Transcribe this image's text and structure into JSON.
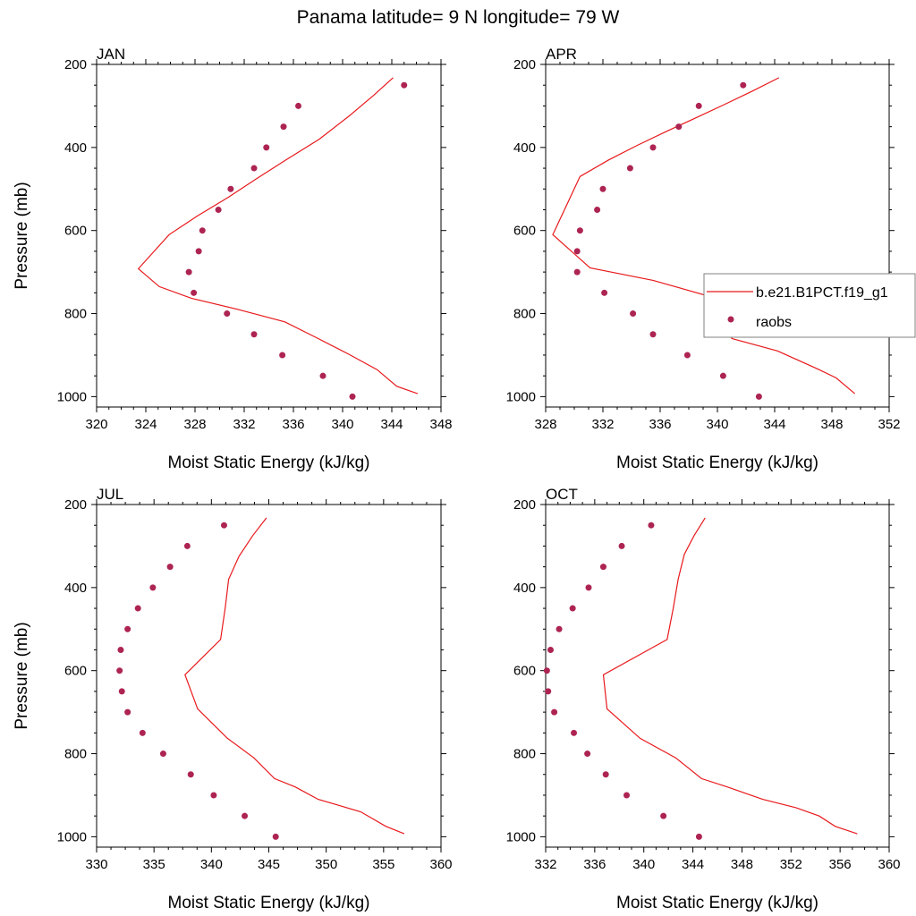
{
  "figure_title": "Panama  latitude= 9 N longitude= 79 W",
  "legend": {
    "model_label": "b.e21.B1PCT.f19_g1",
    "obs_label": "raobs",
    "model_color": "#e8191c",
    "obs_color": "#ad2453"
  },
  "chart_data": [
    {
      "type": "line",
      "panel": "JAN",
      "xlabel": "Moist Static Energy (kJ/kg)",
      "ylabel": "Pressure (mb)",
      "xlim": [
        320,
        348
      ],
      "ylim": [
        200,
        1025
      ],
      "y_inverted": true,
      "xticks": [
        "320",
        "324",
        "328",
        "332",
        "336",
        "340",
        "344",
        "348"
      ],
      "yticks": [
        "200",
        "400",
        "600",
        "800",
        "1000"
      ],
      "series": [
        {
          "name": "b.e21.B1PCT.f19_g1",
          "style": "line",
          "points": [
            [
              344.1,
              232
            ],
            [
              342.5,
              275
            ],
            [
              340.5,
              325
            ],
            [
              338.1,
              380
            ],
            [
              335.4,
              430
            ],
            [
              333.0,
              475
            ],
            [
              330.7,
              520
            ],
            [
              328.2,
              565
            ],
            [
              325.9,
              610
            ],
            [
              323.4,
              692
            ],
            [
              325.1,
              735
            ],
            [
              327.7,
              763
            ],
            [
              331.5,
              790
            ],
            [
              335.3,
              820
            ],
            [
              338.0,
              860
            ],
            [
              340.5,
              898
            ],
            [
              342.8,
              935
            ],
            [
              344.4,
              975
            ],
            [
              346.1,
              993
            ]
          ]
        },
        {
          "name": "raobs",
          "style": "scatter",
          "points": [
            [
              345.0,
              250
            ],
            [
              336.4,
              300
            ],
            [
              335.2,
              350
            ],
            [
              333.8,
              400
            ],
            [
              332.8,
              450
            ],
            [
              330.9,
              500
            ],
            [
              329.9,
              550
            ],
            [
              328.6,
              600
            ],
            [
              328.3,
              650
            ],
            [
              327.5,
              700
            ],
            [
              327.9,
              750
            ],
            [
              330.6,
              800
            ],
            [
              332.8,
              850
            ],
            [
              335.1,
              900
            ],
            [
              338.4,
              950
            ],
            [
              340.8,
              1000
            ]
          ]
        }
      ]
    },
    {
      "type": "line",
      "panel": "APR",
      "xlabel": "Moist Static Energy (kJ/kg)",
      "ylabel": "",
      "xlim": [
        328,
        352
      ],
      "ylim": [
        200,
        1025
      ],
      "y_inverted": true,
      "xticks": [
        "328",
        "332",
        "336",
        "340",
        "344",
        "348",
        "352"
      ],
      "yticks": [
        "200",
        "400",
        "600",
        "800",
        "1000"
      ],
      "series": [
        {
          "name": "b.e21.B1PCT.f19_g1",
          "style": "line",
          "points": [
            [
              344.3,
              232
            ],
            [
              342.4,
              265
            ],
            [
              340.4,
              298
            ],
            [
              338.4,
              330
            ],
            [
              336.4,
              362
            ],
            [
              334.4,
              395
            ],
            [
              332.4,
              430
            ],
            [
              330.4,
              470
            ],
            [
              328.5,
              610
            ],
            [
              331.1,
              690
            ],
            [
              335.5,
              720
            ],
            [
              339.6,
              760
            ],
            [
              340.6,
              800
            ],
            [
              341.0,
              860
            ],
            [
              344.2,
              890
            ],
            [
              347.1,
              935
            ],
            [
              348.3,
              955
            ],
            [
              349.6,
              993
            ]
          ]
        },
        {
          "name": "raobs",
          "style": "scatter",
          "points": [
            [
              341.8,
              250
            ],
            [
              338.7,
              300
            ],
            [
              337.3,
              350
            ],
            [
              335.5,
              400
            ],
            [
              333.9,
              450
            ],
            [
              332.0,
              500
            ],
            [
              331.6,
              550
            ],
            [
              330.4,
              600
            ],
            [
              330.2,
              650
            ],
            [
              330.2,
              700
            ],
            [
              332.1,
              750
            ],
            [
              334.1,
              800
            ],
            [
              335.5,
              850
            ],
            [
              337.9,
              900
            ],
            [
              340.4,
              950
            ],
            [
              342.9,
              1000
            ]
          ]
        }
      ]
    },
    {
      "type": "line",
      "panel": "JUL",
      "xlabel": "Moist Static Energy (kJ/kg)",
      "ylabel": "Pressure (mb)",
      "xlim": [
        330,
        360
      ],
      "ylim": [
        200,
        1025
      ],
      "y_inverted": true,
      "xticks": [
        "330",
        "335",
        "340",
        "345",
        "350",
        "355",
        "360"
      ],
      "yticks": [
        "200",
        "400",
        "600",
        "800",
        "1000"
      ],
      "series": [
        {
          "name": "b.e21.B1PCT.f19_g1",
          "style": "line",
          "points": [
            [
              344.8,
              232
            ],
            [
              343.6,
              275
            ],
            [
              342.4,
              325
            ],
            [
              341.5,
              380
            ],
            [
              341.2,
              450
            ],
            [
              340.8,
              525
            ],
            [
              337.7,
              610
            ],
            [
              338.8,
              692
            ],
            [
              341.4,
              763
            ],
            [
              343.7,
              810
            ],
            [
              345.5,
              860
            ],
            [
              347.3,
              880
            ],
            [
              349.3,
              910
            ],
            [
              353.0,
              940
            ],
            [
              355.2,
              975
            ],
            [
              356.8,
              993
            ]
          ]
        },
        {
          "name": "raobs",
          "style": "scatter",
          "points": [
            [
              341.1,
              250
            ],
            [
              337.9,
              300
            ],
            [
              336.4,
              350
            ],
            [
              334.9,
              400
            ],
            [
              333.6,
              450
            ],
            [
              332.7,
              500
            ],
            [
              332.1,
              550
            ],
            [
              332.0,
              600
            ],
            [
              332.2,
              650
            ],
            [
              332.7,
              700
            ],
            [
              334.0,
              750
            ],
            [
              335.8,
              800
            ],
            [
              338.2,
              850
            ],
            [
              340.2,
              900
            ],
            [
              342.9,
              950
            ],
            [
              345.6,
              1000
            ]
          ]
        }
      ]
    },
    {
      "type": "line",
      "panel": "OCT",
      "xlabel": "Moist Static Energy (kJ/kg)",
      "ylabel": "",
      "xlim": [
        332,
        360
      ],
      "ylim": [
        200,
        1025
      ],
      "y_inverted": true,
      "xticks": [
        "332",
        "336",
        "340",
        "344",
        "348",
        "352",
        "356",
        "360"
      ],
      "yticks": [
        "200",
        "400",
        "600",
        "800",
        "1000"
      ],
      "series": [
        {
          "name": "b.e21.B1PCT.f19_g1",
          "style": "line",
          "points": [
            [
              345.0,
              232
            ],
            [
              344.1,
              275
            ],
            [
              343.3,
              320
            ],
            [
              342.8,
              380
            ],
            [
              342.4,
              450
            ],
            [
              341.9,
              525
            ],
            [
              336.7,
              610
            ],
            [
              337.0,
              692
            ],
            [
              339.7,
              763
            ],
            [
              342.6,
              810
            ],
            [
              344.7,
              860
            ],
            [
              346.8,
              880
            ],
            [
              349.7,
              910
            ],
            [
              352.4,
              930
            ],
            [
              354.3,
              950
            ],
            [
              355.6,
              975
            ],
            [
              357.4,
              993
            ]
          ]
        },
        {
          "name": "raobs",
          "style": "scatter",
          "points": [
            [
              340.6,
              250
            ],
            [
              338.2,
              300
            ],
            [
              336.7,
              350
            ],
            [
              335.5,
              400
            ],
            [
              334.2,
              450
            ],
            [
              333.1,
              500
            ],
            [
              332.4,
              550
            ],
            [
              332.1,
              600
            ],
            [
              332.2,
              650
            ],
            [
              332.7,
              700
            ],
            [
              334.3,
              750
            ],
            [
              335.4,
              800
            ],
            [
              336.9,
              850
            ],
            [
              338.6,
              900
            ],
            [
              341.6,
              950
            ],
            [
              344.5,
              1000
            ]
          ]
        }
      ]
    }
  ]
}
